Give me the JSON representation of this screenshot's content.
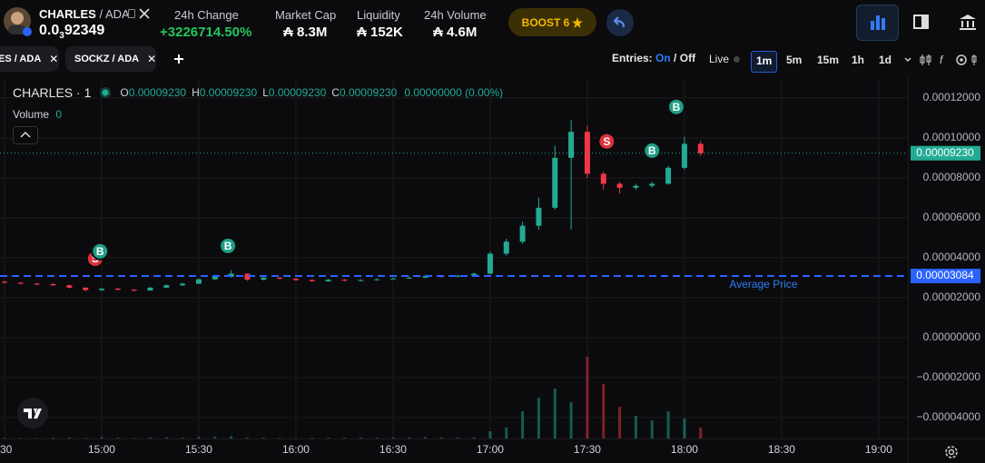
{
  "header": {
    "token": "CHARLES",
    "pair": "/ ADA",
    "price": {
      "lead": "0.0",
      "zeros": "3",
      "digits": "92349"
    },
    "stats": [
      {
        "label": "24h Change",
        "value": "+3226714.50%"
      },
      {
        "label": "Market Cap",
        "value": "₳ 8.3M"
      },
      {
        "label": "Liquidity",
        "value": "₳ 152K"
      },
      {
        "label": "24h Volume",
        "value": "₳ 4.6M"
      }
    ],
    "boost": "BOOST 6"
  },
  "tabs": [
    "ES / ADA",
    "SOCKZ / ADA"
  ],
  "toolbar": {
    "entries_label": "Entries:",
    "on": "On",
    "separator": "/",
    "off": "Off",
    "live": "Live",
    "intervals": [
      "1m",
      "5m",
      "15m",
      "1h",
      "1d"
    ]
  },
  "chart_data": {
    "type": "candlestick",
    "title": "CHARLES · 1",
    "legend": [
      {
        "key": "O",
        "value": "0.00009230"
      },
      {
        "key": "H",
        "value": "0.00009230"
      },
      {
        "key": "L",
        "value": "0.00009230"
      },
      {
        "key": "C",
        "value": "0.00009230"
      }
    ],
    "change": "0.00000000 (0.00%)",
    "volume_label": "Volume",
    "volume_value": "0",
    "up_color": "#22ab94",
    "down_color": "#f23645",
    "grid": true,
    "xlim": [
      868.6,
      1149
    ],
    "xticks": [
      {
        "value": 870,
        "label": ":30"
      },
      {
        "value": 900,
        "label": "15:00"
      },
      {
        "value": 930,
        "label": "15:30"
      },
      {
        "value": 960,
        "label": "16:00"
      },
      {
        "value": 990,
        "label": "16:30"
      },
      {
        "value": 1020,
        "label": "17:00"
      },
      {
        "value": 1050,
        "label": "17:30"
      },
      {
        "value": 1080,
        "label": "18:00"
      },
      {
        "value": 1110,
        "label": "18:30"
      },
      {
        "value": 1140,
        "label": "19:00"
      }
    ],
    "ylim": [
      -5.05e-05,
      0.000129
    ],
    "yticks": [
      {
        "value": 0.00012,
        "label": "0.00012000"
      },
      {
        "value": 0.0001,
        "label": "0.00010000"
      },
      {
        "value": 8e-05,
        "label": "0.00008000"
      },
      {
        "value": 6e-05,
        "label": "0.00006000"
      },
      {
        "value": 4e-05,
        "label": "0.00004000"
      },
      {
        "value": 2e-05,
        "label": "0.00002000"
      },
      {
        "value": 0,
        "label": "0.00000000"
      },
      {
        "value": -2e-05,
        "label": "−0.00002000"
      },
      {
        "value": -4e-05,
        "label": "−0.00004000"
      }
    ],
    "x": [
      870,
      875,
      880,
      885,
      890,
      895,
      900,
      905,
      910,
      915,
      920,
      925,
      930,
      935,
      940,
      945,
      950,
      955,
      960,
      965,
      970,
      975,
      980,
      985,
      990,
      995,
      1000,
      1005,
      1010,
      1015,
      1020,
      1025,
      1030,
      1035,
      1040,
      1045,
      1050,
      1055,
      1060,
      1065,
      1070,
      1075,
      1080,
      1085
    ],
    "open": [
      2.8e-05,
      2.75e-05,
      2.7e-05,
      2.68e-05,
      2.62e-05,
      2.5e-05,
      2.38e-05,
      2.45e-05,
      2.4e-05,
      2.36e-05,
      2.5e-05,
      2.62e-05,
      2.7e-05,
      2.92e-05,
      3.05e-05,
      3.2e-05,
      2.9e-05,
      3e-05,
      2.95e-05,
      2.88e-05,
      2.82e-05,
      2.9e-05,
      2.85e-05,
      2.88e-05,
      2.92e-05,
      2.96e-05,
      3e-05,
      3.08e-05,
      3.05e-05,
      3.1e-05,
      3.2e-05,
      4.2e-05,
      4.8e-05,
      5.6e-05,
      6.5e-05,
      9e-05,
      0.000103,
      8.2e-05,
      7.7e-05,
      7.5e-05,
      7.6e-05,
      7.7e-05,
      8.5e-05,
      9.7e-05
    ],
    "high": [
      2.85e-05,
      2.78e-05,
      2.74e-05,
      2.7e-05,
      2.65e-05,
      2.52e-05,
      2.48e-05,
      2.5e-05,
      2.42e-05,
      2.53e-05,
      2.66e-05,
      2.74e-05,
      2.96e-05,
      3.12e-05,
      3.38e-05,
      3.22e-05,
      3.04e-05,
      3.03e-05,
      2.98e-05,
      2.92e-05,
      2.94e-05,
      2.93e-05,
      2.92e-05,
      2.96e-05,
      3e-05,
      3.06e-05,
      3.15e-05,
      3.12e-05,
      3.14e-05,
      3.25e-05,
      4.3e-05,
      4.95e-05,
      5.8e-05,
      7e-05,
      9.6e-05,
      0.000109,
      0.000106,
      8.3e-05,
      7.8e-05,
      7.7e-05,
      7.8e-05,
      8.6e-05,
      0.0001005,
      9.85e-05
    ],
    "low": [
      2.7e-05,
      2.66e-05,
      2.62e-05,
      2.58e-05,
      2.46e-05,
      2.32e-05,
      2.34e-05,
      2.36e-05,
      2.3e-05,
      2.34e-05,
      2.48e-05,
      2.58e-05,
      2.68e-05,
      2.88e-05,
      3e-05,
      2.85e-05,
      2.86e-05,
      2.9e-05,
      2.84e-05,
      2.78e-05,
      2.8e-05,
      2.82e-05,
      2.82e-05,
      2.85e-05,
      2.9e-05,
      2.94e-05,
      2.98e-05,
      3e-05,
      3.02e-05,
      3.06e-05,
      3.18e-05,
      4.1e-05,
      4.7e-05,
      5.4e-05,
      6.4e-05,
      5.4e-05,
      8e-05,
      7.4e-05,
      7.2e-05,
      7.4e-05,
      7.5e-05,
      7.65e-05,
      8.4e-05,
      9.1e-05
    ],
    "close": [
      2.75e-05,
      2.7e-05,
      2.68e-05,
      2.62e-05,
      2.5e-05,
      2.38e-05,
      2.45e-05,
      2.4e-05,
      2.36e-05,
      2.5e-05,
      2.62e-05,
      2.7e-05,
      2.92e-05,
      3.05e-05,
      3.2e-05,
      2.9e-05,
      3e-05,
      2.95e-05,
      2.88e-05,
      2.82e-05,
      2.9e-05,
      2.85e-05,
      2.88e-05,
      2.92e-05,
      2.96e-05,
      3e-05,
      3.08e-05,
      3.05e-05,
      3.1e-05,
      3.2e-05,
      4.2e-05,
      4.8e-05,
      5.6e-05,
      6.5e-05,
      9e-05,
      0.000103,
      8.2e-05,
      7.7e-05,
      7.5e-05,
      7.6e-05,
      7.7e-05,
      8.5e-05,
      9.7e-05,
      9.23e-05
    ],
    "volume": [
      800,
      600,
      500,
      900,
      1200,
      700,
      1500,
      900,
      600,
      1100,
      1400,
      800,
      1600,
      1800,
      2500,
      1200,
      900,
      700,
      600,
      800,
      700,
      900,
      1000,
      800,
      1100,
      1300,
      1500,
      1200,
      1000,
      1400,
      8000,
      12000,
      30000,
      45000,
      55000,
      40000,
      90000,
      60000,
      35000,
      25000,
      20000,
      30000,
      22000,
      12000
    ],
    "last_price": {
      "value": 9.23e-05,
      "label": "0.00009230"
    },
    "average_price": {
      "value": 3.084e-05,
      "label": "0.00003084",
      "name": "Average Price"
    },
    "trades": [
      {
        "side": "S",
        "x": 898,
        "y": 3.95e-05
      },
      {
        "side": "B",
        "x": 899.5,
        "y": 4.32e-05
      },
      {
        "side": "B",
        "x": 939,
        "y": 4.59e-05
      },
      {
        "side": "S",
        "x": 1056,
        "y": 9.82e-05
      },
      {
        "side": "B",
        "x": 1070,
        "y": 9.36e-05
      },
      {
        "side": "B",
        "x": 1077.5,
        "y": 0.0001155
      }
    ]
  }
}
